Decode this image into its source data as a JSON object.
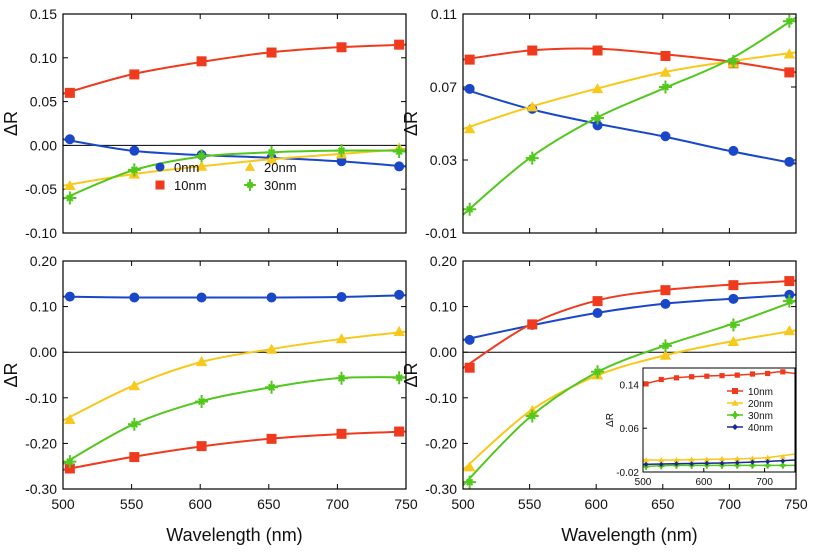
{
  "chart_data": [
    {
      "id": "top-left",
      "type": "line",
      "xlabel": "",
      "ylabel": "ΔR",
      "xlim": [
        500,
        750
      ],
      "ylim": [
        -0.1,
        0.15
      ],
      "yticks": [
        0.15,
        0.1,
        0.05,
        0.0,
        -0.05,
        -0.1
      ],
      "ytick_labels": [
        "0.15",
        "0.10",
        "0.05",
        "0.00",
        "-0.05",
        "-0.10"
      ],
      "zero_line": true,
      "legend": {
        "position": "lower-center",
        "entries": [
          {
            "label": "0nm",
            "series": "0nm"
          },
          {
            "label": "20nm",
            "series": "20nm"
          },
          {
            "label": "10nm",
            "series": "10nm"
          },
          {
            "label": "30nm",
            "series": "30nm"
          }
        ]
      },
      "series": [
        {
          "name": "0nm",
          "color": "#1a47c8",
          "marker": "circle",
          "x": [
            500,
            550,
            600,
            650,
            700,
            750
          ],
          "y": [
            0.007,
            -0.006,
            -0.011,
            -0.014,
            -0.018,
            -0.024
          ],
          "mx": [
            505,
            552,
            601,
            652,
            703,
            745
          ],
          "my": [
            0.007,
            -0.006,
            -0.011,
            -0.014,
            -0.018,
            -0.024
          ]
        },
        {
          "name": "10nm",
          "color": "#f03a1e",
          "marker": "square",
          "x": [
            500,
            550,
            600,
            650,
            700,
            750
          ],
          "y": [
            0.059,
            0.081,
            0.095,
            0.106,
            0.112,
            0.115
          ],
          "mx": [
            505,
            552,
            601,
            652,
            703,
            745
          ],
          "my": [
            0.06,
            0.081,
            0.096,
            0.106,
            0.112,
            0.115
          ]
        },
        {
          "name": "20nm",
          "color": "#f8c81c",
          "marker": "triangle",
          "x": [
            500,
            550,
            600,
            650,
            700,
            750
          ],
          "y": [
            -0.046,
            -0.033,
            -0.024,
            -0.016,
            -0.01,
            -0.004
          ],
          "mx": [
            505,
            552,
            601,
            652,
            703,
            745
          ],
          "my": [
            -0.046,
            -0.033,
            -0.024,
            -0.016,
            -0.01,
            -0.003
          ]
        },
        {
          "name": "30nm",
          "color": "#52c81c",
          "marker": "star",
          "x": [
            500,
            550,
            600,
            650,
            700,
            750
          ],
          "y": [
            -0.061,
            -0.029,
            -0.013,
            -0.008,
            -0.006,
            -0.006
          ],
          "mx": [
            505,
            552,
            601,
            652,
            703,
            745
          ],
          "my": [
            -0.06,
            -0.028,
            -0.012,
            -0.008,
            -0.006,
            -0.007
          ]
        }
      ]
    },
    {
      "id": "top-right",
      "type": "line",
      "xlabel": "",
      "ylabel": "ΔR",
      "xlim": [
        500,
        750
      ],
      "ylim": [
        -0.01,
        0.11
      ],
      "yticks": [
        0.11,
        0.07,
        0.03,
        -0.01
      ],
      "ytick_labels": [
        "0.11",
        "0.07",
        "0.03",
        "-0.01"
      ],
      "zero_line": false,
      "series": [
        {
          "name": "0nm",
          "color": "#1a47c8",
          "marker": "circle",
          "x": [
            500,
            550,
            600,
            650,
            700,
            750
          ],
          "y": [
            0.069,
            0.058,
            0.05,
            0.043,
            0.035,
            0.028
          ],
          "mx": [
            505,
            552,
            601,
            652,
            703,
            745
          ],
          "my": [
            0.069,
            0.058,
            0.049,
            0.043,
            0.035,
            0.029
          ]
        },
        {
          "name": "10nm",
          "color": "#f03a1e",
          "marker": "square",
          "x": [
            500,
            550,
            600,
            650,
            700,
            750
          ],
          "y": [
            0.085,
            0.09,
            0.091,
            0.088,
            0.084,
            0.078
          ],
          "mx": [
            505,
            552,
            601,
            652,
            703,
            745
          ],
          "my": [
            0.085,
            0.09,
            0.09,
            0.087,
            0.083,
            0.078
          ]
        },
        {
          "name": "20nm",
          "color": "#f8c81c",
          "marker": "triangle",
          "x": [
            500,
            550,
            600,
            650,
            700,
            750
          ],
          "y": [
            0.047,
            0.059,
            0.069,
            0.078,
            0.084,
            0.089
          ],
          "mx": [
            505,
            552,
            601,
            652,
            703,
            745
          ],
          "my": [
            0.047,
            0.059,
            0.069,
            0.078,
            0.083,
            0.088
          ]
        },
        {
          "name": "30nm",
          "color": "#52c81c",
          "marker": "star",
          "x": [
            500,
            550,
            600,
            650,
            700,
            750
          ],
          "y": [
            0.0,
            0.031,
            0.053,
            0.069,
            0.085,
            0.108
          ],
          "mx": [
            505,
            552,
            601,
            652,
            703,
            745
          ],
          "my": [
            0.003,
            0.031,
            0.053,
            0.07,
            0.084,
            0.106
          ]
        }
      ]
    },
    {
      "id": "bottom-left",
      "type": "line",
      "xlabel": "Wavelength (nm)",
      "ylabel": "ΔR",
      "xlim": [
        500,
        750
      ],
      "ylim": [
        -0.3,
        0.2
      ],
      "xticks": [
        500,
        550,
        600,
        650,
        700,
        750
      ],
      "xtick_labels": [
        "500",
        "550",
        "600",
        "650",
        "700",
        "750"
      ],
      "yticks": [
        0.2,
        0.1,
        0.0,
        -0.1,
        -0.2,
        -0.3
      ],
      "ytick_labels": [
        "0.20",
        "0.10",
        "0.00",
        "-0.10",
        "-0.20",
        "-0.30"
      ],
      "zero_line": true,
      "series": [
        {
          "name": "0nm",
          "color": "#1a47c8",
          "marker": "circle",
          "x": [
            500,
            550,
            600,
            650,
            700,
            750
          ],
          "y": [
            0.122,
            0.12,
            0.12,
            0.12,
            0.121,
            0.125
          ],
          "mx": [
            505,
            552,
            601,
            652,
            703,
            745
          ],
          "my": [
            0.122,
            0.12,
            0.12,
            0.12,
            0.121,
            0.126
          ]
        },
        {
          "name": "10nm",
          "color": "#f03a1e",
          "marker": "square",
          "x": [
            500,
            550,
            600,
            650,
            700,
            750
          ],
          "y": [
            -0.258,
            -0.23,
            -0.207,
            -0.19,
            -0.18,
            -0.174
          ],
          "mx": [
            505,
            552,
            601,
            652,
            703,
            745
          ],
          "my": [
            -0.255,
            -0.23,
            -0.206,
            -0.19,
            -0.179,
            -0.174
          ]
        },
        {
          "name": "20nm",
          "color": "#f8c81c",
          "marker": "triangle",
          "x": [
            500,
            550,
            600,
            650,
            700,
            750
          ],
          "y": [
            -0.15,
            -0.075,
            -0.022,
            0.006,
            0.028,
            0.045
          ],
          "mx": [
            505,
            552,
            601,
            652,
            703,
            745
          ],
          "my": [
            -0.148,
            -0.074,
            -0.021,
            0.006,
            0.029,
            0.045
          ]
        },
        {
          "name": "30nm",
          "color": "#52c81c",
          "marker": "star",
          "x": [
            500,
            550,
            600,
            650,
            700,
            750
          ],
          "y": [
            -0.245,
            -0.16,
            -0.108,
            -0.078,
            -0.057,
            -0.055
          ],
          "mx": [
            505,
            552,
            601,
            652,
            703,
            745
          ],
          "my": [
            -0.24,
            -0.158,
            -0.108,
            -0.077,
            -0.057,
            -0.056
          ]
        }
      ]
    },
    {
      "id": "bottom-right",
      "type": "line",
      "xlabel": "Wavelength (nm)",
      "ylabel": "ΔR",
      "xlim": [
        500,
        750
      ],
      "ylim": [
        -0.3,
        0.2
      ],
      "xticks": [
        500,
        550,
        600,
        650,
        700,
        750
      ],
      "xtick_labels": [
        "500",
        "550",
        "600",
        "650",
        "700",
        "750"
      ],
      "yticks": [
        0.2,
        0.1,
        0.0,
        -0.1,
        -0.2,
        -0.3
      ],
      "ytick_labels": [
        "0.20",
        "0.10",
        "0.00",
        "-0.10",
        "-0.20",
        "-0.30"
      ],
      "zero_line": true,
      "series": [
        {
          "name": "0nm",
          "color": "#1a47c8",
          "marker": "circle",
          "x": [
            500,
            550,
            600,
            650,
            700,
            750
          ],
          "y": [
            0.027,
            0.058,
            0.086,
            0.106,
            0.117,
            0.126
          ],
          "mx": [
            505,
            552,
            601,
            652,
            703,
            745
          ],
          "my": [
            0.027,
            0.06,
            0.086,
            0.106,
            0.117,
            0.126
          ]
        },
        {
          "name": "10nm",
          "color": "#f03a1e",
          "marker": "square",
          "x": [
            500,
            550,
            600,
            650,
            700,
            750
          ],
          "y": [
            -0.035,
            0.06,
            0.113,
            0.136,
            0.148,
            0.157
          ],
          "mx": [
            505,
            552,
            601,
            652,
            703,
            745
          ],
          "my": [
            -0.034,
            0.061,
            0.112,
            0.136,
            0.147,
            0.156
          ]
        },
        {
          "name": "20nm",
          "color": "#f8c81c",
          "marker": "triangle",
          "x": [
            500,
            550,
            600,
            650,
            700,
            750
          ],
          "y": [
            -0.258,
            -0.13,
            -0.052,
            -0.008,
            0.023,
            0.048
          ],
          "mx": [
            505,
            552,
            601,
            652,
            703,
            745
          ],
          "my": [
            -0.252,
            -0.128,
            -0.05,
            -0.007,
            0.023,
            0.047
          ]
        },
        {
          "name": "30nm",
          "color": "#52c81c",
          "marker": "star",
          "x": [
            500,
            550,
            600,
            650,
            700,
            750
          ],
          "y": [
            -0.292,
            -0.143,
            -0.045,
            0.013,
            0.06,
            0.113
          ],
          "mx": [
            505,
            552,
            601,
            652,
            703,
            745
          ],
          "my": [
            -0.285,
            -0.14,
            -0.043,
            0.014,
            0.06,
            0.112
          ]
        }
      ],
      "inset": {
        "type": "line",
        "ylabel": "ΔR",
        "xlim": [
          500,
          750
        ],
        "ylim": [
          -0.02,
          0.17
        ],
        "xticks": [
          500,
          600,
          700
        ],
        "xtick_labels": [
          "500",
          "600",
          "700"
        ],
        "yticks": [
          0.14,
          0.06,
          -0.02
        ],
        "ytick_labels": [
          "0.14",
          "0.06",
          "-0.02"
        ],
        "legend": {
          "position": "top-right",
          "entries": [
            {
              "label": "10nm",
              "series": "10nm"
            },
            {
              "label": "20nm",
              "series": "20nm"
            },
            {
              "label": "30nm",
              "series": "30nm"
            },
            {
              "label": "40nm",
              "series": "40nm"
            }
          ]
        },
        "series": [
          {
            "name": "10nm",
            "color": "#f03a1e",
            "marker": "square",
            "x": [
              500,
              525,
              550,
              600,
              650,
              700,
              725,
              750
            ],
            "y": [
              0.14,
              0.147,
              0.152,
              0.155,
              0.157,
              0.16,
              0.163,
              0.16
            ],
            "mx": [
              505,
              530,
              555,
              580,
              605,
              630,
              655,
              680,
              705,
              730
            ],
            "my": [
              0.141,
              0.149,
              0.152,
              0.154,
              0.155,
              0.156,
              0.157,
              0.159,
              0.16,
              0.163
            ]
          },
          {
            "name": "20nm",
            "color": "#f8c81c",
            "marker": "triangle",
            "x": [
              500,
              550,
              600,
              650,
              700,
              750
            ],
            "y": [
              0.002,
              0.002,
              0.003,
              0.004,
              0.006,
              0.013
            ],
            "mx": [
              505,
              530,
              555,
              580,
              605,
              630,
              655,
              680,
              705,
              730
            ],
            "my": [
              0.002,
              0.002,
              0.002,
              0.003,
              0.003,
              0.004,
              0.004,
              0.005,
              0.006,
              0.008
            ]
          },
          {
            "name": "30nm",
            "color": "#52c81c",
            "marker": "star",
            "x": [
              500,
              550,
              600,
              650,
              700,
              750
            ],
            "y": [
              -0.01,
              -0.008,
              -0.008,
              -0.008,
              -0.008,
              -0.008
            ],
            "mx": [
              505,
              530,
              555,
              580,
              605,
              630,
              655,
              680,
              705,
              730
            ],
            "my": [
              -0.01,
              -0.009,
              -0.008,
              -0.008,
              -0.008,
              -0.008,
              -0.008,
              -0.008,
              -0.008,
              -0.008
            ]
          },
          {
            "name": "40nm",
            "color": "#1a2a8a",
            "marker": "diamond",
            "x": [
              500,
              550,
              600,
              650,
              700,
              750
            ],
            "y": [
              -0.006,
              -0.005,
              -0.004,
              -0.003,
              -0.001,
              0.002
            ],
            "mx": [
              505,
              530,
              555,
              580,
              605,
              630,
              655,
              680,
              705,
              730
            ],
            "my": [
              -0.006,
              -0.006,
              -0.005,
              -0.005,
              -0.004,
              -0.004,
              -0.003,
              -0.002,
              -0.001,
              0.0
            ]
          }
        ]
      }
    }
  ]
}
